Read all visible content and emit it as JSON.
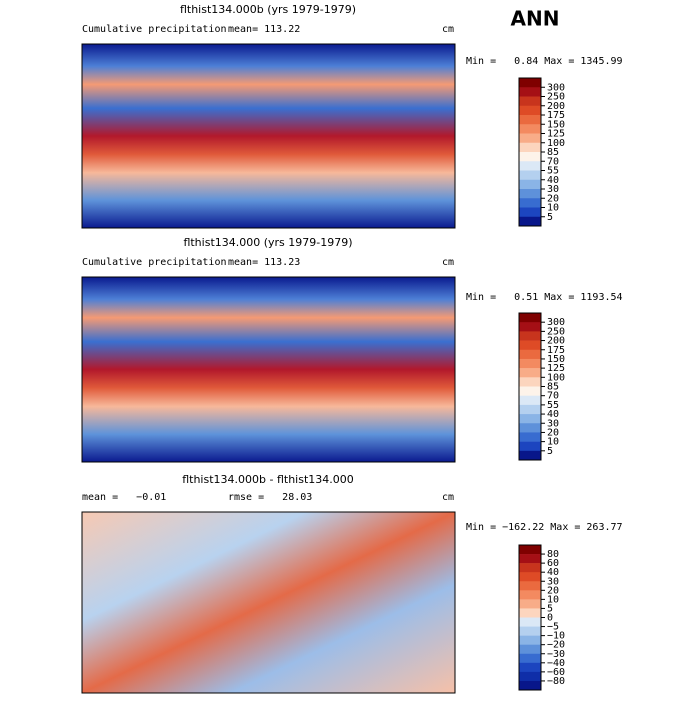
{
  "header": {
    "title": "ANN"
  },
  "panels": [
    {
      "title": "flthist134.000b (yrs 1979-1979)",
      "left_label": "Cumulative precipitation",
      "center_label": "mean= 113.22",
      "units": "cm",
      "min_max": "Min =   0.84 Max = 1345.99",
      "colorbar": {
        "labels": [
          "300",
          "250",
          "200",
          "175",
          "150",
          "125",
          "100",
          "85",
          "70",
          "55",
          "40",
          "30",
          "20",
          "10",
          "5"
        ],
        "colors": [
          "#7f0000",
          "#a50f15",
          "#c8341d",
          "#de4b26",
          "#ea6a3f",
          "#f38a60",
          "#f8ac88",
          "#fcd5be",
          "#fdf3ea",
          "#dbe8f6",
          "#b4d0ef",
          "#8ab4e6",
          "#5e91da",
          "#386cd0",
          "#1c45bf",
          "#08168a"
        ]
      }
    },
    {
      "title": "flthist134.000 (yrs 1979-1979)",
      "left_label": "Cumulative precipitation",
      "center_label": "mean= 113.23",
      "units": "cm",
      "min_max": "Min =   0.51 Max = 1193.54",
      "colorbar": {
        "labels": [
          "300",
          "250",
          "200",
          "175",
          "150",
          "125",
          "100",
          "85",
          "70",
          "55",
          "40",
          "30",
          "20",
          "10",
          "5"
        ],
        "colors": [
          "#7f0000",
          "#a50f15",
          "#c8341d",
          "#de4b26",
          "#ea6a3f",
          "#f38a60",
          "#f8ac88",
          "#fcd5be",
          "#fdf3ea",
          "#dbe8f6",
          "#b4d0ef",
          "#8ab4e6",
          "#5e91da",
          "#386cd0",
          "#1c45bf",
          "#08168a"
        ]
      }
    },
    {
      "title": "flthist134.000b - flthist134.000",
      "left_label": "mean =   −0.01",
      "center_label": "rmse =   28.03",
      "units": "cm",
      "min_max": "Min = −162.22 Max = 263.77",
      "colorbar": {
        "labels": [
          "80",
          "60",
          "40",
          "30",
          "20",
          "10",
          "5",
          "0",
          "−5",
          "−10",
          "−20",
          "−30",
          "−40",
          "−60",
          "−80"
        ],
        "colors": [
          "#7f0000",
          "#a50f15",
          "#c8341d",
          "#de4b26",
          "#ea6a3f",
          "#f38a60",
          "#f8ac88",
          "#fcd5be",
          "#dbe8f6",
          "#b4d0ef",
          "#8ab4e6",
          "#5e91da",
          "#386cd0",
          "#1c45bf",
          "#0f2ea8",
          "#08168a"
        ]
      }
    }
  ]
}
